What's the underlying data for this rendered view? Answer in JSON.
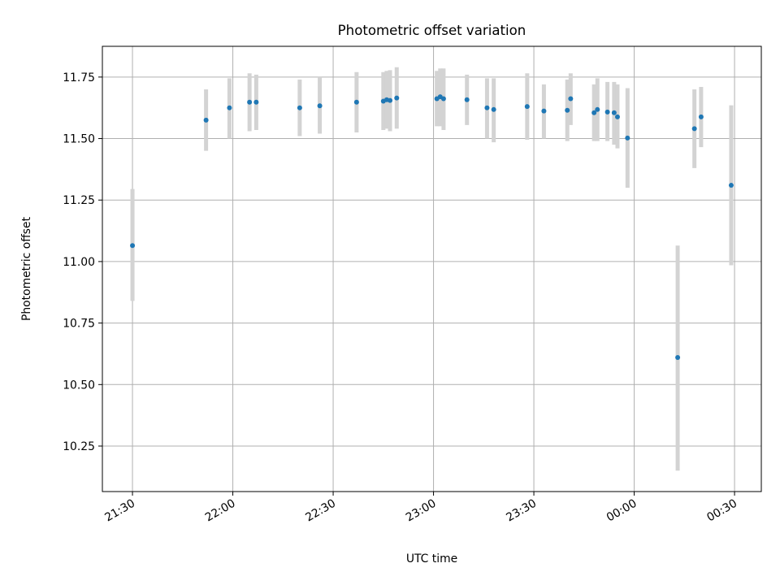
{
  "chart_data": {
    "type": "scatter",
    "title": "Photometric offset variation",
    "xlabel": "UTC time",
    "ylabel": "Photometric offset",
    "x_unit": "UTC time (HH:MM)",
    "xlim": [
      "21:21",
      "00:38"
    ],
    "ylim": [
      10.065,
      11.875
    ],
    "xticks": [
      "21:30",
      "22:00",
      "22:30",
      "23:00",
      "23:30",
      "00:00",
      "00:30"
    ],
    "yticks": [
      10.25,
      10.5,
      10.75,
      11.0,
      11.25,
      11.5,
      11.75
    ],
    "ytick_labels": [
      "10.25",
      "10.50",
      "10.75",
      "11.00",
      "11.25",
      "11.50",
      "11.75"
    ],
    "grid": true,
    "marker_color": "#1f77b4",
    "errorbar_color": "#d3d3d3",
    "points": [
      {
        "x": "21:30",
        "y": 11.065,
        "ylo": 10.84,
        "yhi": 11.295
      },
      {
        "x": "21:52",
        "y": 11.575,
        "ylo": 11.45,
        "yhi": 11.7
      },
      {
        "x": "21:59",
        "y": 11.625,
        "ylo": 11.5,
        "yhi": 11.745
      },
      {
        "x": "22:05",
        "y": 11.648,
        "ylo": 11.53,
        "yhi": 11.765
      },
      {
        "x": "22:07",
        "y": 11.648,
        "ylo": 11.535,
        "yhi": 11.76
      },
      {
        "x": "22:20",
        "y": 11.625,
        "ylo": 11.51,
        "yhi": 11.74
      },
      {
        "x": "22:26",
        "y": 11.633,
        "ylo": 11.52,
        "yhi": 11.75
      },
      {
        "x": "22:37",
        "y": 11.648,
        "ylo": 11.525,
        "yhi": 11.77
      },
      {
        "x": "22:45",
        "y": 11.652,
        "ylo": 11.535,
        "yhi": 11.77
      },
      {
        "x": "22:46",
        "y": 11.658,
        "ylo": 11.54,
        "yhi": 11.775
      },
      {
        "x": "22:47",
        "y": 11.655,
        "ylo": 11.53,
        "yhi": 11.778
      },
      {
        "x": "22:49",
        "y": 11.665,
        "ylo": 11.54,
        "yhi": 11.79
      },
      {
        "x": "23:01",
        "y": 11.662,
        "ylo": 11.55,
        "yhi": 11.775
      },
      {
        "x": "23:02",
        "y": 11.67,
        "ylo": 11.55,
        "yhi": 11.785
      },
      {
        "x": "23:03",
        "y": 11.662,
        "ylo": 11.535,
        "yhi": 11.785
      },
      {
        "x": "23:10",
        "y": 11.658,
        "ylo": 11.555,
        "yhi": 11.76
      },
      {
        "x": "23:16",
        "y": 11.625,
        "ylo": 11.5,
        "yhi": 11.745
      },
      {
        "x": "23:18",
        "y": 11.618,
        "ylo": 11.485,
        "yhi": 11.745
      },
      {
        "x": "23:28",
        "y": 11.63,
        "ylo": 11.495,
        "yhi": 11.765
      },
      {
        "x": "23:33",
        "y": 11.612,
        "ylo": 11.5,
        "yhi": 11.72
      },
      {
        "x": "23:40",
        "y": 11.615,
        "ylo": 11.49,
        "yhi": 11.74
      },
      {
        "x": "23:41",
        "y": 11.662,
        "ylo": 11.555,
        "yhi": 11.765
      },
      {
        "x": "23:48",
        "y": 11.605,
        "ylo": 11.49,
        "yhi": 11.72
      },
      {
        "x": "23:49",
        "y": 11.618,
        "ylo": 11.49,
        "yhi": 11.745
      },
      {
        "x": "23:52",
        "y": 11.608,
        "ylo": 11.49,
        "yhi": 11.73
      },
      {
        "x": "23:54",
        "y": 11.605,
        "ylo": 11.475,
        "yhi": 11.73
      },
      {
        "x": "23:55",
        "y": 11.588,
        "ylo": 11.46,
        "yhi": 11.72
      },
      {
        "x": "23:58",
        "y": 11.502,
        "ylo": 11.3,
        "yhi": 11.705
      },
      {
        "x": "00:13",
        "y": 10.61,
        "ylo": 10.15,
        "yhi": 11.065
      },
      {
        "x": "00:18",
        "y": 11.54,
        "ylo": 11.38,
        "yhi": 11.7
      },
      {
        "x": "00:20",
        "y": 11.588,
        "ylo": 11.465,
        "yhi": 11.71
      },
      {
        "x": "00:29",
        "y": 11.31,
        "ylo": 10.985,
        "yhi": 11.635
      }
    ]
  }
}
